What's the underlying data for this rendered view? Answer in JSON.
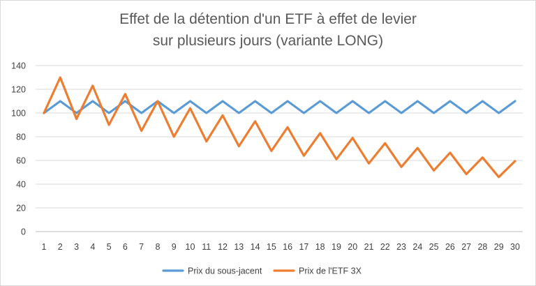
{
  "chart_data": {
    "type": "line",
    "title_lines": [
      "Effet de la détention d'un ETF à effet de levier",
      "sur plusieurs jours (variante LONG)"
    ],
    "xlabel": "",
    "ylabel": "",
    "categories": [
      "1",
      "2",
      "3",
      "4",
      "5",
      "6",
      "7",
      "8",
      "9",
      "10",
      "11",
      "12",
      "13",
      "14",
      "15",
      "16",
      "17",
      "18",
      "19",
      "20",
      "21",
      "22",
      "23",
      "24",
      "25",
      "26",
      "27",
      "28",
      "29",
      "30"
    ],
    "ylim": [
      0,
      140
    ],
    "yticks": [
      "0",
      "20",
      "40",
      "60",
      "80",
      "100",
      "120",
      "140"
    ],
    "grid": true,
    "legend_position": "bottom",
    "series": [
      {
        "name": "Prix du sous-jacent",
        "color": "#5b9bd5",
        "values": [
          100,
          110,
          100,
          110,
          100,
          110,
          100,
          110,
          100,
          110,
          100,
          110,
          100,
          110,
          100,
          110,
          100,
          110,
          100,
          110,
          100,
          110,
          100,
          110,
          100,
          110,
          100,
          110,
          100,
          110
        ]
      },
      {
        "name": "Prix de l'ETF 3X",
        "color": "#ed7d31",
        "values": [
          100,
          130,
          95,
          123,
          90,
          116,
          85,
          110,
          80,
          104,
          76,
          98,
          72,
          93,
          68,
          88,
          64,
          83,
          61,
          79,
          57.5,
          74.5,
          54.5,
          70.5,
          51.5,
          66.5,
          48.5,
          62.5,
          46,
          59.5
        ]
      }
    ]
  }
}
